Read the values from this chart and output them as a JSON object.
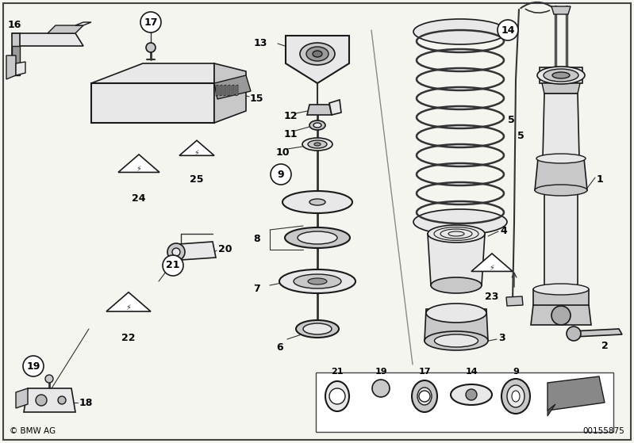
{
  "background_color": "#f0f0f0",
  "border_color": "#000000",
  "copyright_text": "© BMW AG",
  "part_number": "00155875",
  "fig_width": 7.99,
  "fig_height": 5.59,
  "dpi": 100,
  "ec": "#1a1a1a",
  "lc": "#333333",
  "fc_light": "#e8e8e8",
  "fc_mid": "#c8c8c8",
  "fc_dark": "#999999"
}
